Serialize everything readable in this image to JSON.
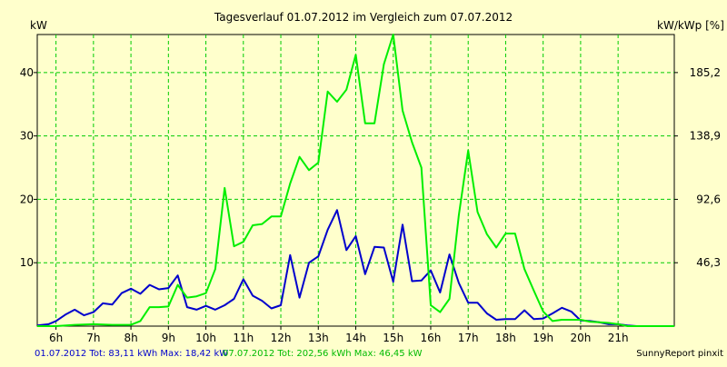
{
  "chart_data": {
    "type": "line",
    "title": "Tagesverlauf 01.07.2012 im Vergleich zum 07.07.2012",
    "ylabel_left": "kW",
    "ylabel_right": "kW/kWp [%]",
    "x_ticks": [
      "6h",
      "7h",
      "8h",
      "9h",
      "10h",
      "11h",
      "12h",
      "13h",
      "14h",
      "15h",
      "16h",
      "17h",
      "18h",
      "19h",
      "20h",
      "21h"
    ],
    "x_tick_values": [
      6,
      7,
      8,
      9,
      10,
      11,
      12,
      13,
      14,
      15,
      16,
      17,
      18,
      19,
      20,
      21
    ],
    "xlim": [
      5.5,
      22.5
    ],
    "ylim": [
      0,
      46
    ],
    "y_ticks_left": [
      10,
      20,
      30,
      40
    ],
    "y_ticks_right": [
      {
        "label": "46,3",
        "kw": 10
      },
      {
        "label": "92,6",
        "kw": 20
      },
      {
        "label": "138,9",
        "kw": 30
      },
      {
        "label": "185,2",
        "kw": 40
      }
    ],
    "grid": true,
    "series": [
      {
        "color": "#0000cc",
        "points": [
          [
            5.5,
            0.1
          ],
          [
            5.8,
            0.3
          ],
          [
            6.0,
            0.8
          ],
          [
            6.25,
            1.8
          ],
          [
            6.5,
            2.6
          ],
          [
            6.75,
            1.7
          ],
          [
            7.0,
            2.2
          ],
          [
            7.25,
            3.6
          ],
          [
            7.5,
            3.4
          ],
          [
            7.75,
            5.2
          ],
          [
            8.0,
            5.9
          ],
          [
            8.25,
            5.1
          ],
          [
            8.5,
            6.5
          ],
          [
            8.75,
            5.8
          ],
          [
            9.0,
            6.0
          ],
          [
            9.25,
            8.0
          ],
          [
            9.5,
            3.0
          ],
          [
            9.75,
            2.6
          ],
          [
            10.0,
            3.2
          ],
          [
            10.25,
            2.6
          ],
          [
            10.5,
            3.3
          ],
          [
            10.75,
            4.3
          ],
          [
            11.0,
            7.4
          ],
          [
            11.25,
            4.8
          ],
          [
            11.5,
            4.0
          ],
          [
            11.75,
            2.8
          ],
          [
            12.0,
            3.3
          ],
          [
            12.25,
            11.2
          ],
          [
            12.5,
            4.5
          ],
          [
            12.75,
            10.0
          ],
          [
            13.0,
            11.0
          ],
          [
            13.25,
            15.2
          ],
          [
            13.5,
            18.3
          ],
          [
            13.75,
            12.0
          ],
          [
            14.0,
            14.2
          ],
          [
            14.25,
            8.2
          ],
          [
            14.5,
            12.5
          ],
          [
            14.75,
            12.4
          ],
          [
            15.0,
            7.0
          ],
          [
            15.25,
            16.0
          ],
          [
            15.5,
            7.1
          ],
          [
            15.75,
            7.2
          ],
          [
            16.0,
            8.8
          ],
          [
            16.25,
            5.3
          ],
          [
            16.5,
            11.3
          ],
          [
            16.75,
            6.8
          ],
          [
            17.0,
            3.7
          ],
          [
            17.25,
            3.7
          ],
          [
            17.5,
            2.0
          ],
          [
            17.75,
            1.0
          ],
          [
            18.0,
            1.1
          ],
          [
            18.25,
            1.1
          ],
          [
            18.5,
            2.5
          ],
          [
            18.75,
            1.1
          ],
          [
            19.0,
            1.2
          ],
          [
            19.25,
            2.0
          ],
          [
            19.5,
            2.9
          ],
          [
            19.75,
            2.3
          ],
          [
            20.0,
            0.9
          ],
          [
            20.25,
            0.8
          ],
          [
            20.5,
            0.6
          ],
          [
            20.75,
            0.3
          ],
          [
            21.0,
            0.3
          ],
          [
            21.25,
            0.1
          ],
          [
            21.5,
            0.0
          ],
          [
            22.5,
            0.0
          ]
        ]
      },
      {
        "color": "#00ee00",
        "points": [
          [
            5.5,
            0.0
          ],
          [
            6.0,
            0.0
          ],
          [
            6.5,
            0.2
          ],
          [
            7.0,
            0.3
          ],
          [
            7.5,
            0.2
          ],
          [
            8.0,
            0.2
          ],
          [
            8.25,
            0.8
          ],
          [
            8.5,
            3.0
          ],
          [
            8.75,
            3.0
          ],
          [
            9.0,
            3.1
          ],
          [
            9.25,
            6.5
          ],
          [
            9.5,
            4.5
          ],
          [
            9.75,
            4.7
          ],
          [
            10.0,
            5.2
          ],
          [
            10.25,
            9.0
          ],
          [
            10.5,
            21.8
          ],
          [
            10.75,
            12.6
          ],
          [
            11.0,
            13.3
          ],
          [
            11.25,
            15.9
          ],
          [
            11.5,
            16.1
          ],
          [
            11.75,
            17.3
          ],
          [
            12.0,
            17.3
          ],
          [
            12.25,
            22.5
          ],
          [
            12.5,
            26.7
          ],
          [
            12.75,
            24.6
          ],
          [
            13.0,
            25.8
          ],
          [
            13.25,
            37.0
          ],
          [
            13.5,
            35.4
          ],
          [
            13.75,
            37.3
          ],
          [
            14.0,
            42.8
          ],
          [
            14.25,
            32.0
          ],
          [
            14.5,
            32.0
          ],
          [
            14.75,
            41.3
          ],
          [
            15.0,
            46.0
          ],
          [
            15.25,
            34.0
          ],
          [
            15.5,
            29.0
          ],
          [
            15.75,
            25.0
          ],
          [
            16.0,
            3.3
          ],
          [
            16.25,
            2.2
          ],
          [
            16.5,
            4.3
          ],
          [
            16.75,
            17.5
          ],
          [
            17.0,
            27.7
          ],
          [
            17.25,
            18.0
          ],
          [
            17.5,
            14.5
          ],
          [
            17.75,
            12.4
          ],
          [
            18.0,
            14.6
          ],
          [
            18.25,
            14.6
          ],
          [
            18.5,
            9.0
          ],
          [
            18.75,
            5.6
          ],
          [
            19.0,
            2.3
          ],
          [
            19.25,
            0.8
          ],
          [
            19.5,
            1.0
          ],
          [
            20.0,
            1.0
          ],
          [
            20.25,
            0.7
          ],
          [
            20.5,
            0.6
          ],
          [
            20.75,
            0.5
          ],
          [
            21.0,
            0.3
          ],
          [
            21.25,
            0.0
          ],
          [
            22.5,
            0.0
          ]
        ]
      }
    ],
    "legend": {
      "blue_text": "01.07.2012 Tot: 83,11 kWh Max: 18,42 kW",
      "green_text": "07.07.2012 Tot: 202,56 kWh Max: 46,45 kW",
      "credit": "SunnyReport pinxit"
    }
  }
}
